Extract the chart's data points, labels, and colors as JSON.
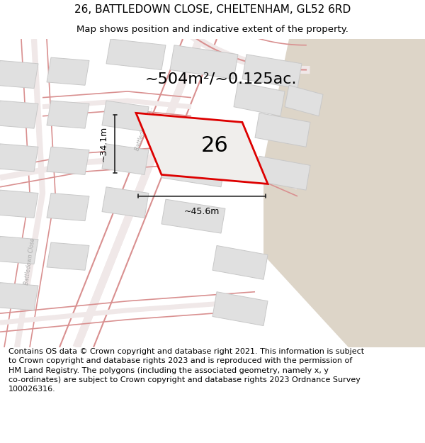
{
  "title": "26, BATTLEDOWN CLOSE, CHELTENHAM, GL52 6RD",
  "subtitle": "Map shows position and indicative extent of the property.",
  "area_text": "~504m²/~0.125ac.",
  "dim_width": "~45.6m",
  "dim_height": "~34.1m",
  "number_label": "26",
  "footer_line1": "Contains OS data © Crown copyright and database right 2021. This information is subject",
  "footer_line2": "to Crown copyright and database rights 2023 and is reproduced with the permission of",
  "footer_line3": "HM Land Registry. The polygons (including the associated geometry, namely x, y",
  "footer_line4": "co-ordinates) are subject to Crown copyright and database rights 2023 Ordnance Survey",
  "footer_line5": "100026316.",
  "map_bg": "#f2eeea",
  "road_color": "#e8b8b8",
  "road_color2": "#d99090",
  "building_fill": "#e0e0e0",
  "building_edge": "#c8c8c8",
  "sandy_fill": "#ddd5c8",
  "plot_color": "#dd0000",
  "plot_fill": "#f0eeec",
  "dim_color": "#222222",
  "street_color": "#aaaaaa",
  "title_fontsize": 11,
  "subtitle_fontsize": 9.5,
  "footer_fontsize": 8,
  "number_fontsize": 22,
  "area_fontsize": 16,
  "dim_fontsize": 9
}
